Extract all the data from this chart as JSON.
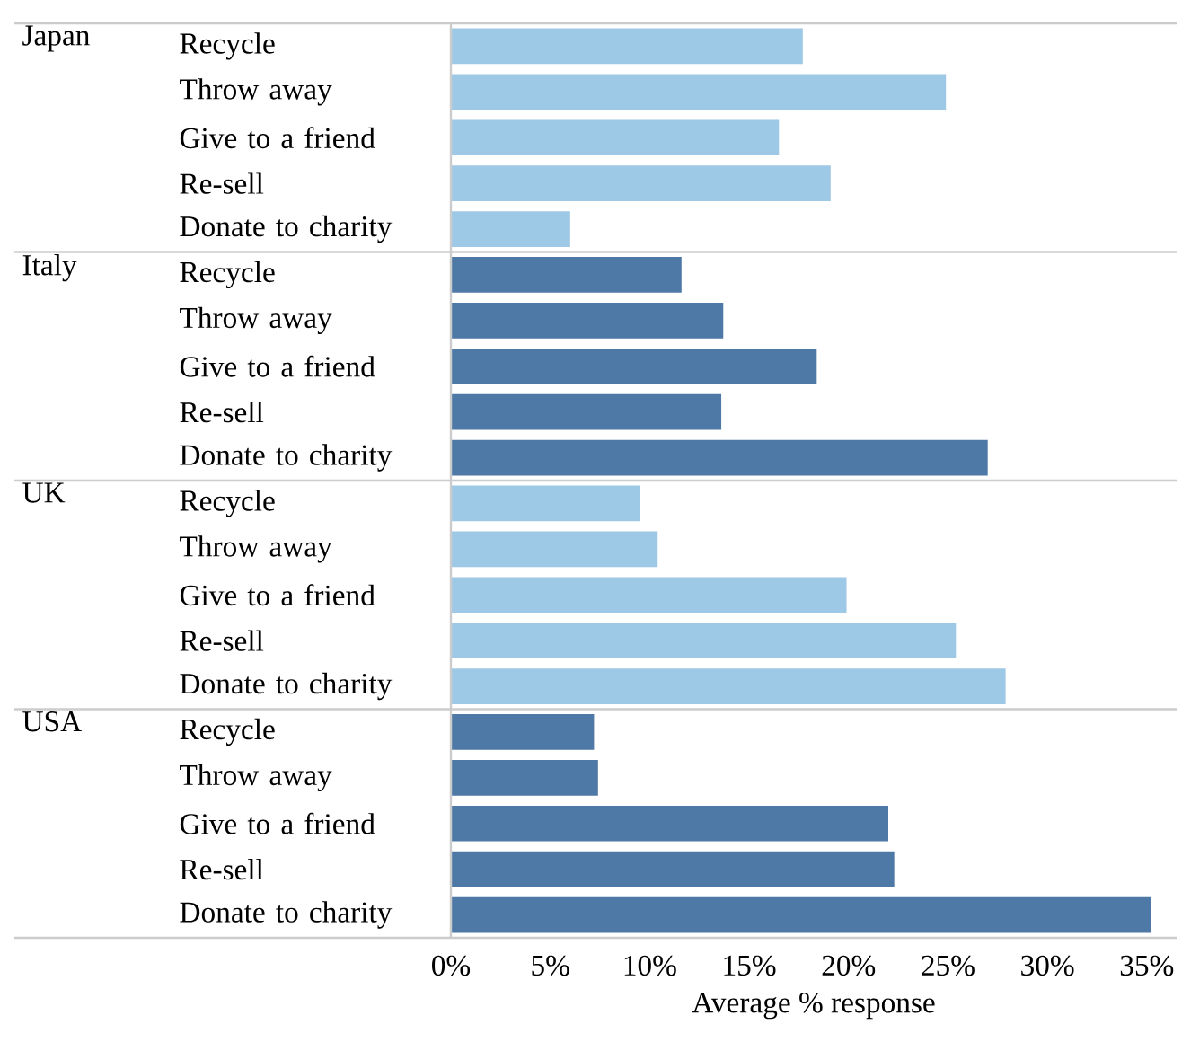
{
  "chart_data": [
    {
      "type": "bar",
      "orientation": "horizontal",
      "title": "Japan",
      "categories": [
        "Recycle",
        "Throw away",
        "Give to a friend",
        "Re-sell",
        "Donate to charity"
      ],
      "values": [
        17.7,
        24.9,
        16.5,
        19.1,
        6.0
      ],
      "color": "#9dc8e6",
      "xlim": [
        0,
        36.5
      ],
      "tick_labels": "y"
    },
    {
      "type": "bar",
      "orientation": "horizontal",
      "title": "Italy",
      "categories": [
        "Recycle",
        "Throw away",
        "Give to a friend",
        "Re-sell",
        "Donate to charity"
      ],
      "values": [
        11.6,
        13.7,
        18.4,
        13.6,
        27.0
      ],
      "color": "#4e78a6",
      "xlim": [
        0,
        36.5
      ],
      "tick_labels": "y"
    },
    {
      "type": "bar",
      "orientation": "horizontal",
      "title": "UK",
      "categories": [
        "Recycle",
        "Throw away",
        "Give to a friend",
        "Re-sell",
        "Donate to charity"
      ],
      "values": [
        9.5,
        10.4,
        19.9,
        25.4,
        27.9
      ],
      "color": "#9dc8e6",
      "xlim": [
        0,
        36.5
      ],
      "tick_labels": "y"
    },
    {
      "type": "bar",
      "orientation": "horizontal",
      "title": "USA",
      "categories": [
        "Recycle",
        "Throw away",
        "Give to a friend",
        "Re-sell",
        "Donate to charity"
      ],
      "values": [
        7.2,
        7.4,
        22.0,
        22.3,
        35.2
      ],
      "color": "#4e78a6",
      "xlim": [
        0,
        36.5
      ],
      "xlabel": "Average % response",
      "xticks": [
        {
          "value": 0,
          "label": "0%"
        },
        {
          "value": 5,
          "label": "5%"
        },
        {
          "value": 10,
          "label": "10%"
        },
        {
          "value": 15,
          "label": "15%"
        },
        {
          "value": 20,
          "label": "20%"
        },
        {
          "value": 25,
          "label": "25%"
        },
        {
          "value": 30,
          "label": "30%"
        },
        {
          "value": 35,
          "label": "35%"
        }
      ]
    }
  ]
}
